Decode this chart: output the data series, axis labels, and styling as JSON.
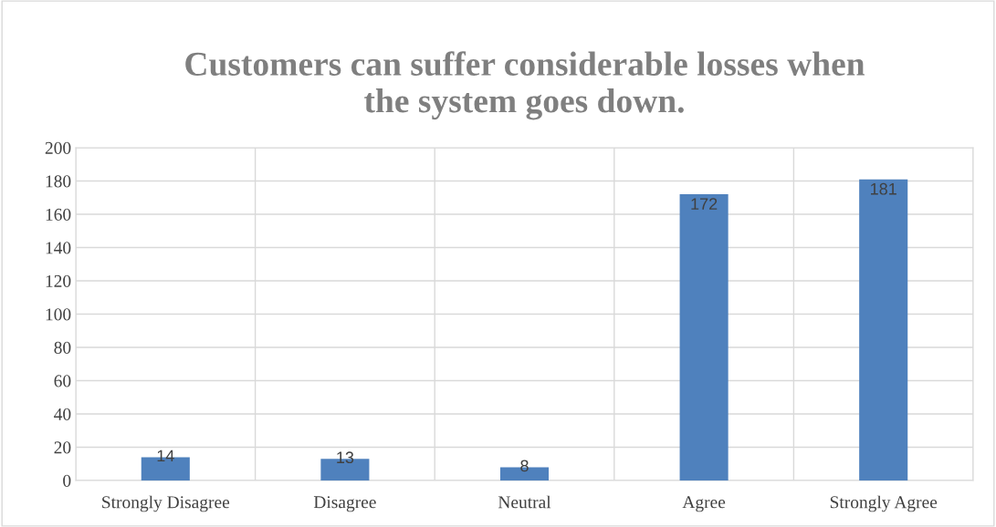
{
  "chart_data": {
    "type": "bar",
    "title": "Customers can suffer considerable losses when\nthe system goes down.",
    "categories": [
      "Strongly Disagree",
      "Disagree",
      "Neutral",
      "Agree",
      "Strongly Agree"
    ],
    "values": [
      14,
      13,
      8,
      172,
      181
    ],
    "color": "#4f81bd",
    "ylim": [
      0,
      200
    ],
    "yticks": [
      0,
      20,
      40,
      60,
      80,
      100,
      120,
      140,
      160,
      180,
      200
    ],
    "grid": true,
    "data_labels": true
  }
}
